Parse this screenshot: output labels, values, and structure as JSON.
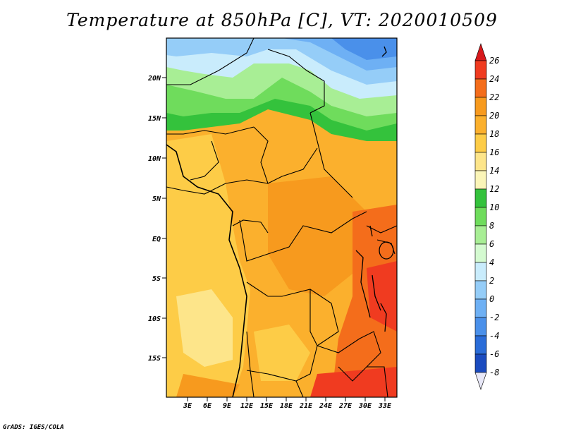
{
  "title": "Temperature at 850hPa [C], VT: 2020010509",
  "credit": "GrADS: IGES/COLA",
  "lat_labels": [
    "20N",
    "15N",
    "10N",
    "5N",
    "EQ",
    "5S",
    "10S",
    "15S"
  ],
  "lon_labels": [
    "3E",
    "6E",
    "9E",
    "12E",
    "15E",
    "18E",
    "21E",
    "24E",
    "27E",
    "30E",
    "33E"
  ],
  "colorbar": {
    "levels": [
      "26",
      "24",
      "22",
      "20",
      "18",
      "16",
      "14",
      "12",
      "10",
      "8",
      "6",
      "4",
      "2",
      "0",
      "-2",
      "-4",
      "-6",
      "-8"
    ],
    "colors": [
      "#d7191c",
      "#f03b20",
      "#f46d1b",
      "#f79a1e",
      "#fbb02d",
      "#fdcc47",
      "#fde58a",
      "#fbf5b8",
      "#34c23c",
      "#6fdc5c",
      "#a8ee95",
      "#d4fad0",
      "#c9ecfc",
      "#95cdf8",
      "#6eb0f4",
      "#4a90ea",
      "#2a6cd8",
      "#1a4bbf",
      "#0c2a8f",
      "#030c5b"
    ],
    "over_color": "#d7191c",
    "under_color": "#e8e8f8"
  },
  "colors": {
    "ocean_warm": "#fdcc47",
    "land_warm": "#fbb02d",
    "east_hot": "#f46d1b",
    "south_hot": "#f03b20",
    "north_green": "#6fdc5c",
    "north_lightgreen": "#a8ee95",
    "north_blue": "#95cdf8",
    "north_darkblue": "#6eb0f4"
  }
}
